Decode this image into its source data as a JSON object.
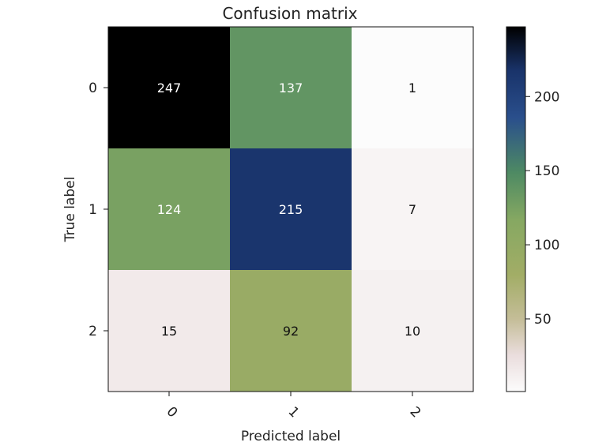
{
  "chart_data": {
    "type": "heatmap",
    "title": "Confusion matrix",
    "xlabel": "Predicted label",
    "ylabel": "True label",
    "x_categories": [
      "0",
      "1",
      "2"
    ],
    "y_categories": [
      "0",
      "1",
      "2"
    ],
    "values": [
      [
        247,
        137,
        1
      ],
      [
        124,
        215,
        7
      ],
      [
        15,
        92,
        10
      ]
    ],
    "colorbar": {
      "range": [
        1,
        247
      ],
      "ticks": [
        50,
        100,
        150,
        200
      ],
      "tick_labels": [
        "50",
        "100",
        "150",
        "200"
      ],
      "colormap": "gist_earth_r",
      "stops": [
        {
          "value": 0.0,
          "color": "#fcfcfc"
        },
        {
          "value": 0.1,
          "color": "#eadddd"
        },
        {
          "value": 0.2,
          "color": "#c4bd97"
        },
        {
          "value": 0.32,
          "color": "#a2ad66"
        },
        {
          "value": 0.47,
          "color": "#86a862"
        },
        {
          "value": 0.6,
          "color": "#4e8a63"
        },
        {
          "value": 0.75,
          "color": "#2a4f8c"
        },
        {
          "value": 0.88,
          "color": "#19336a"
        },
        {
          "value": 1.0,
          "color": "#000000"
        }
      ]
    },
    "grid": false,
    "legend": "colorbar-right",
    "text_color_threshold": 123.5,
    "text_colors": {
      "light": "#ffffff",
      "dark": "#111111"
    }
  }
}
